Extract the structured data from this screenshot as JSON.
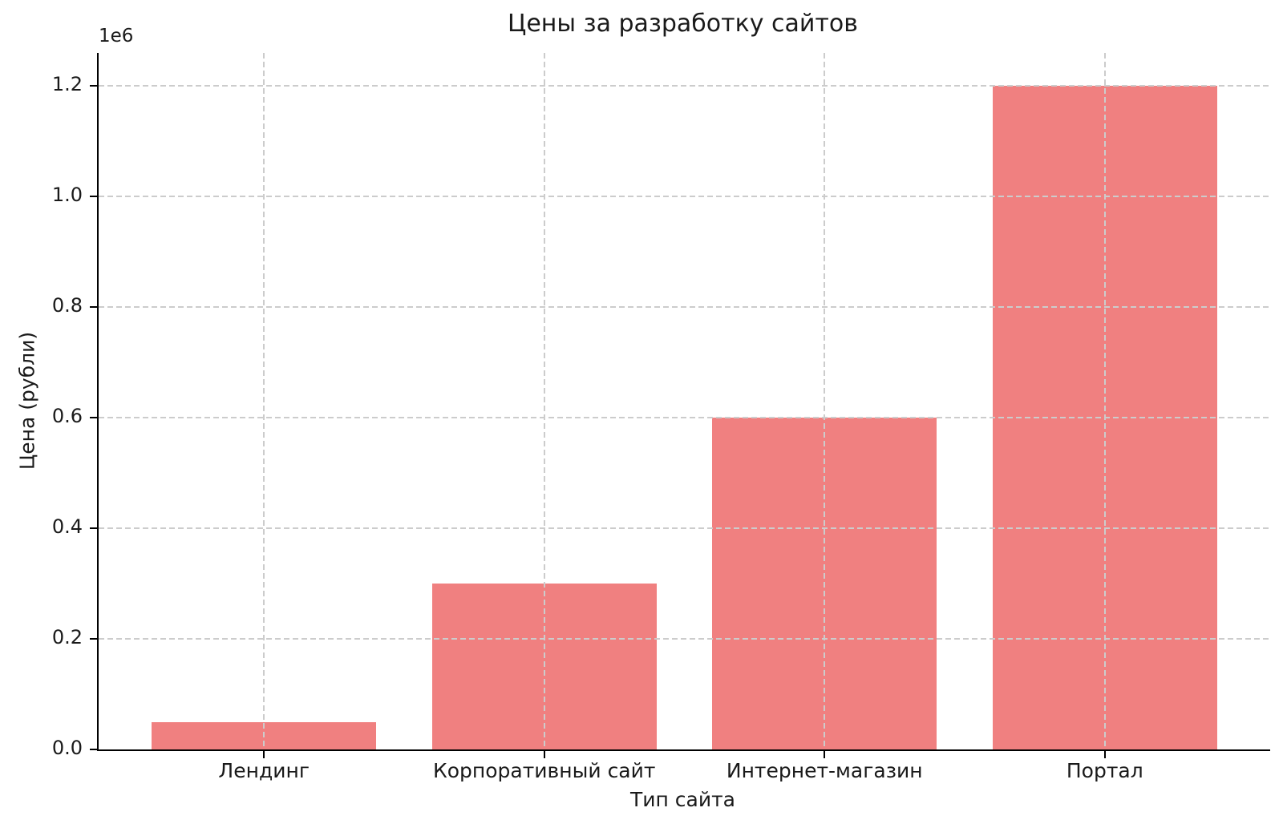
{
  "chart_data": {
    "type": "bar",
    "title": "Цены за разработку сайтов",
    "xlabel": "Тип сайта",
    "ylabel": "Цена (рубли)",
    "offset_text": "1e6",
    "categories": [
      "Лендинг",
      "Корпоративный сайт",
      "Интернет-магазин",
      "Портал"
    ],
    "values": [
      50000,
      300000,
      600000,
      1200000
    ],
    "ytick_values": [
      0,
      200000,
      400000,
      600000,
      800000,
      1000000,
      1200000
    ],
    "ytick_labels": [
      "0.0",
      "0.2",
      "0.4",
      "0.6",
      "0.8",
      "1.0",
      "1.2"
    ],
    "ylim": [
      0,
      1260000
    ],
    "xlim": [
      -0.59,
      3.59
    ],
    "bar_width": 0.8,
    "bar_color": "#f08080",
    "grid": true,
    "grid_on_top": true,
    "grid_color": "#cccccc",
    "spine_color": "#000000",
    "background": "#ffffff",
    "legend": null
  }
}
